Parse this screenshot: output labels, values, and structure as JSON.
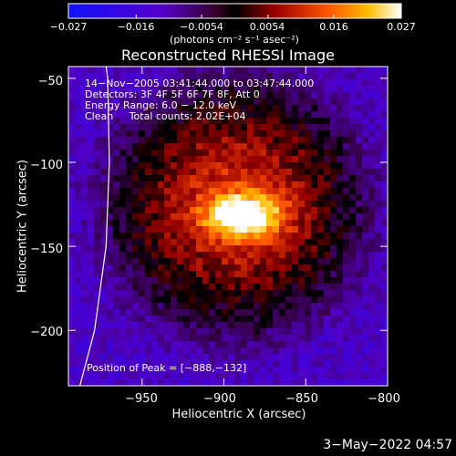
{
  "chart_data": {
    "type": "heatmap",
    "title": "Reconstructed RHESSI Image",
    "xlabel": "Heliocentric X (arcsec)",
    "ylabel": "Heliocentric Y (arcsec)",
    "xlim": [
      -995,
      -800
    ],
    "ylim": [
      -233,
      -43
    ],
    "x_ticks": [
      -950,
      -900,
      -850,
      -800
    ],
    "x_tick_labels": [
      "−950",
      "−900",
      "−850",
      "−800"
    ],
    "y_ticks": [
      -50,
      -100,
      -150,
      -200
    ],
    "y_tick_labels": [
      "−50",
      "−100",
      "−150",
      "−200"
    ],
    "colorbar": {
      "range": [
        -0.027,
        0.027
      ],
      "ticks": [
        -0.027,
        -0.016,
        -0.0054,
        0.0054,
        0.016,
        0.027
      ],
      "tick_labels": [
        "−0.027",
        "−0.016",
        "−0.0054",
        "0.0054",
        "0.016",
        "0.027"
      ],
      "unit_label": "(photons cm⁻² s⁻¹ asec⁻²)"
    },
    "peak": {
      "x": -888,
      "y": -132
    },
    "annotations": [
      "14−Nov−2005 03:41:44.000 to 03:47:44.000",
      "Detectors: 3F 4F 5F 6F 7F 8F, Att 0",
      "Energy Range: 6.0 − 12.0 keV",
      "Clean     Total counts: 2.02E+04"
    ],
    "peak_label": "Position of Peak = [−888,−132]",
    "limb_points": [
      [
        -988,
        -233
      ],
      [
        -979,
        -200
      ],
      [
        -972,
        -150
      ],
      [
        -970,
        -100
      ],
      [
        -971,
        -50
      ],
      [
        -972,
        -43
      ]
    ],
    "colors": {
      "background": "#000000",
      "text": "#ffffff",
      "limb": "#ffffff"
    }
  },
  "footer": {
    "date": "3−May−2022 04:57"
  }
}
